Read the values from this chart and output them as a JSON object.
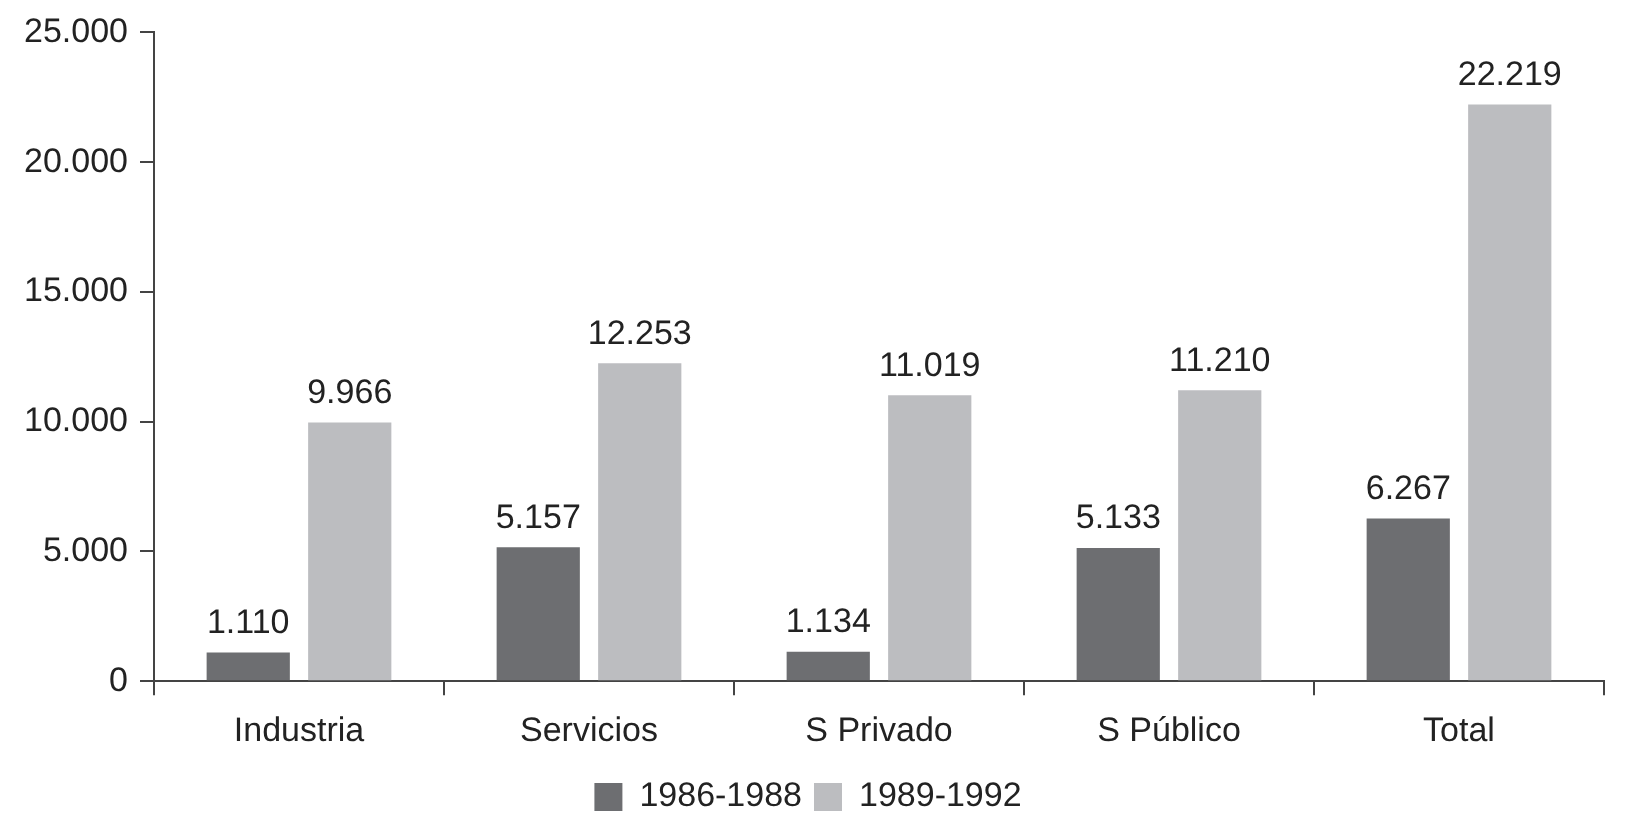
{
  "chart_data": {
    "type": "bar",
    "categories": [
      "Industria",
      "Servicios",
      "S Privado",
      "S Público",
      "Total"
    ],
    "series": [
      {
        "name": "1986-1988",
        "color": "#6d6e71",
        "values": [
          1110,
          5157,
          1134,
          5133,
          6267
        ],
        "value_labels": [
          "1.110",
          "5.157",
          "1.134",
          "5.133",
          "6.267"
        ]
      },
      {
        "name": "1989-1992",
        "color": "#bcbdc0",
        "values": [
          9966,
          12253,
          11019,
          11210,
          22219
        ],
        "value_labels": [
          "9.966",
          "12.253",
          "11.019",
          "11.210",
          "22.219"
        ]
      }
    ],
    "ylim": [
      0,
      25000
    ],
    "yticks": [
      {
        "value": 0,
        "label": "0"
      },
      {
        "value": 5000,
        "label": "5.000"
      },
      {
        "value": 10000,
        "label": "10.000"
      },
      {
        "value": 15000,
        "label": "15.000"
      },
      {
        "value": 20000,
        "label": "20.000"
      },
      {
        "value": 25000,
        "label": "25.000"
      }
    ],
    "grid": false,
    "legend": "bottom"
  }
}
